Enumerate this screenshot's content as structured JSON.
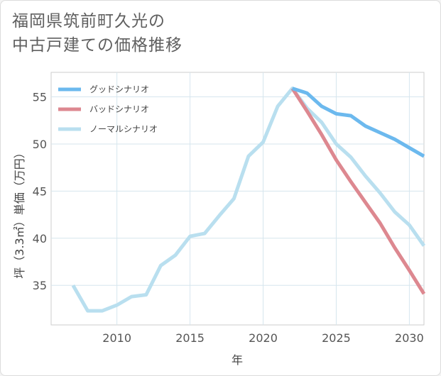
{
  "title_lines": [
    "福岡県筑前町久光の",
    "中古戸建ての価格推移"
  ],
  "chart_data": {
    "type": "line",
    "title": "福岡県筑前町久光の中古戸建ての価格推移",
    "xlabel": "年",
    "ylabel": "坪（3.3㎡）単価（万円）",
    "xlim": [
      2005.5,
      2031
    ],
    "ylim": [
      30.8,
      57.6
    ],
    "xticks": [
      2010,
      2015,
      2020,
      2025,
      2030
    ],
    "yticks": [
      35,
      40,
      45,
      50,
      55
    ],
    "grid": true,
    "legend_position": "top-left",
    "series": [
      {
        "name": "グッドシナリオ",
        "color": "#6cb9ee",
        "x": [
          2022,
          2023,
          2024,
          2025,
          2026,
          2027,
          2028,
          2029,
          2030,
          2031
        ],
        "y": [
          55.9,
          55.4,
          54.0,
          53.2,
          53.0,
          51.9,
          51.2,
          50.5,
          49.6,
          48.7
        ]
      },
      {
        "name": "バッドシナリオ",
        "color": "#dd8890",
        "x": [
          2022,
          2023,
          2024,
          2025,
          2026,
          2027,
          2028,
          2029,
          2030,
          2031
        ],
        "y": [
          55.9,
          53.5,
          51.0,
          48.3,
          46.0,
          43.8,
          41.6,
          39.0,
          36.6,
          34.1
        ]
      },
      {
        "name": "ノーマルシナリオ",
        "color": "#b9dfef",
        "x": [
          2007,
          2008,
          2009,
          2010,
          2011,
          2012,
          2013,
          2014,
          2015,
          2016,
          2017,
          2018,
          2019,
          2020,
          2021,
          2022,
          2023,
          2024,
          2025,
          2026,
          2027,
          2028,
          2029,
          2030,
          2031
        ],
        "y": [
          35.0,
          32.3,
          32.3,
          32.9,
          33.8,
          34.0,
          37.1,
          38.2,
          40.2,
          40.5,
          42.4,
          44.2,
          48.7,
          50.2,
          54.0,
          55.9,
          53.8,
          52.3,
          50.0,
          48.6,
          46.6,
          44.8,
          42.8,
          41.4,
          39.2
        ]
      }
    ]
  }
}
